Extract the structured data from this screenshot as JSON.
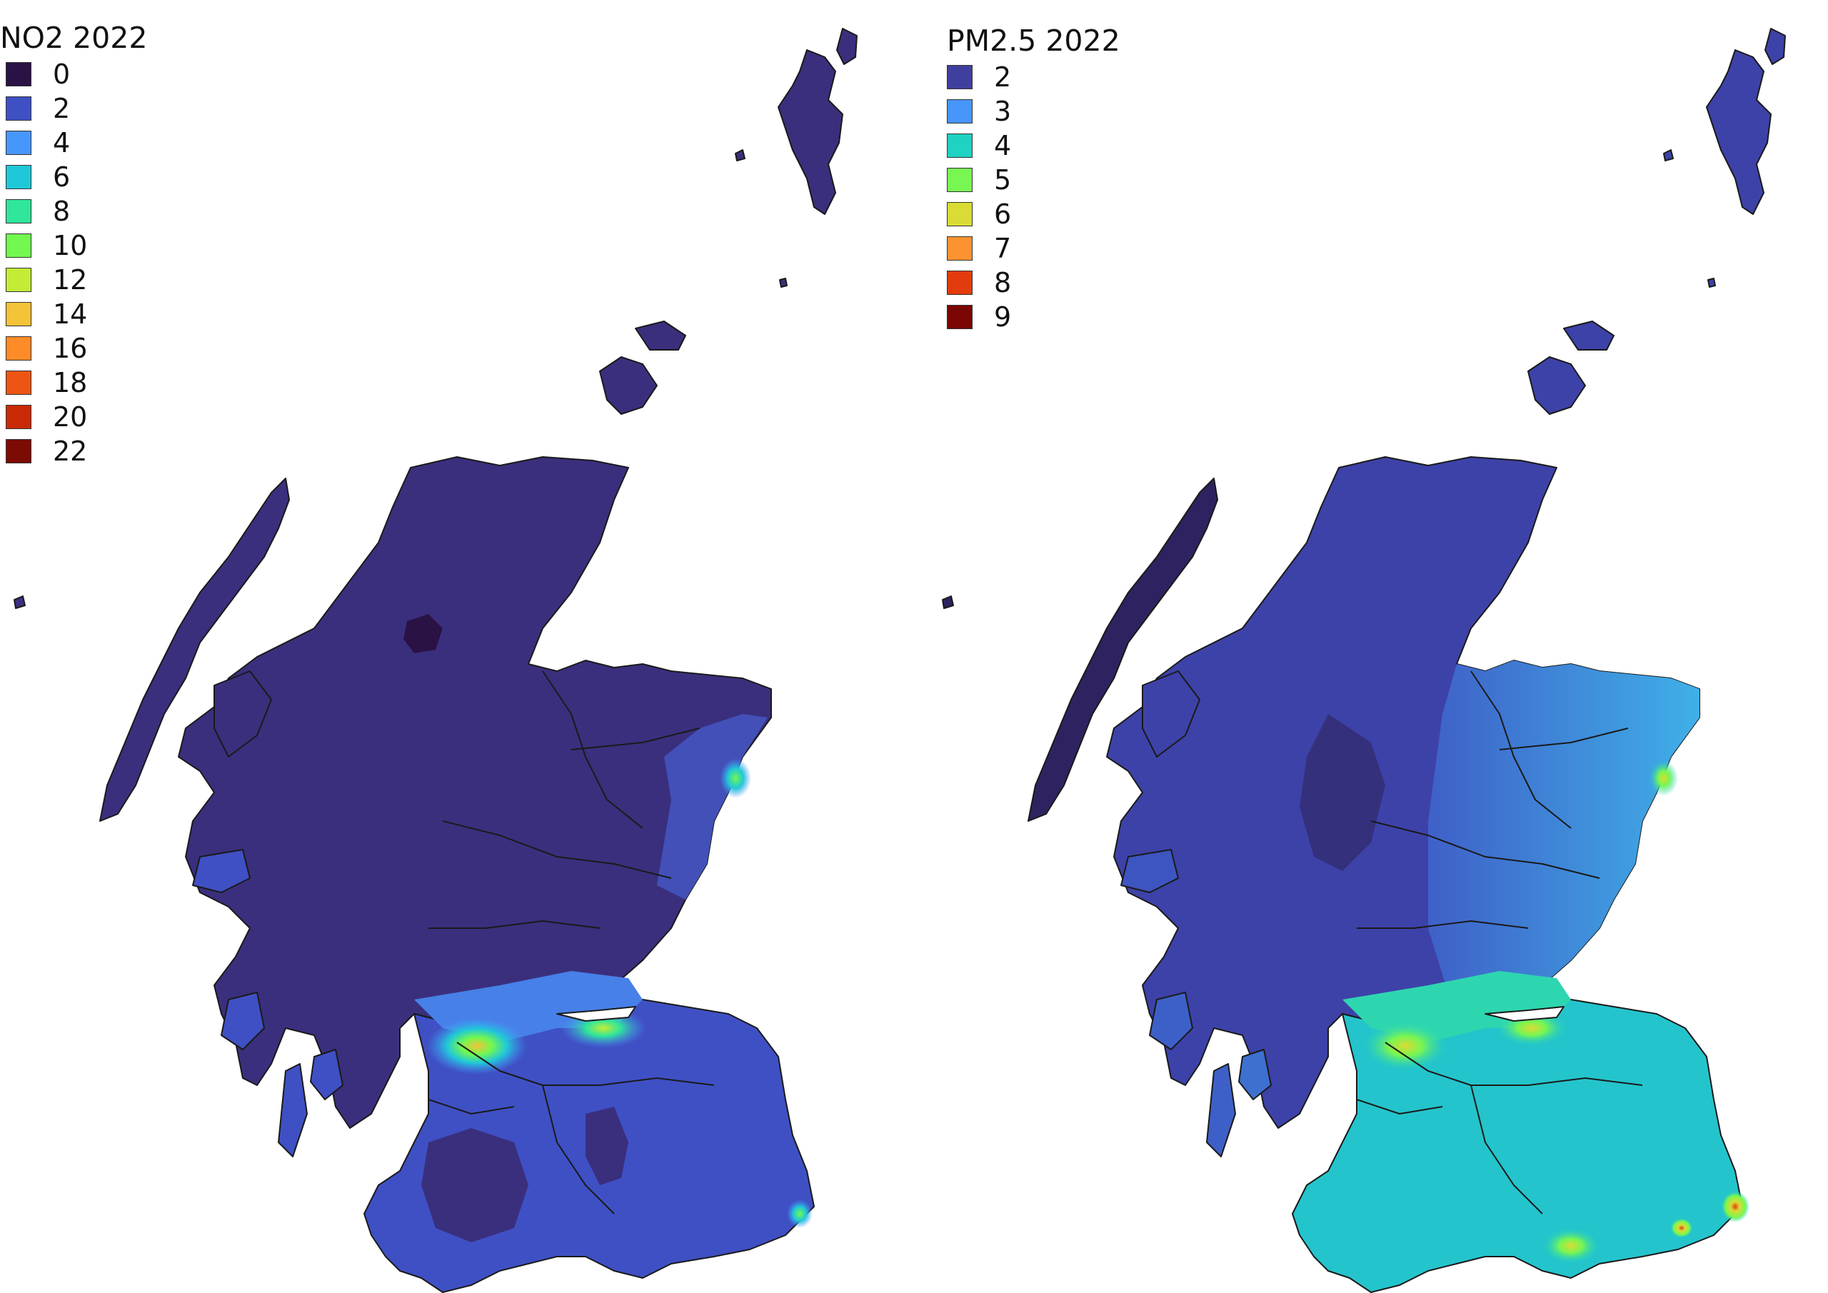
{
  "maps": [
    {
      "title": "NO2 2022",
      "legend": [
        {
          "label": "0",
          "color": "#2a1245"
        },
        {
          "label": "2",
          "color": "#3f50c4"
        },
        {
          "label": "4",
          "color": "#4796fb"
        },
        {
          "label": "6",
          "color": "#1fc8d8"
        },
        {
          "label": "8",
          "color": "#2fe69a"
        },
        {
          "label": "10",
          "color": "#73f84f"
        },
        {
          "label": "12",
          "color": "#c4ec34"
        },
        {
          "label": "14",
          "color": "#f4c338"
        },
        {
          "label": "16",
          "color": "#fc8b28"
        },
        {
          "label": "18",
          "color": "#ee5414"
        },
        {
          "label": "20",
          "color": "#c92a06"
        },
        {
          "label": "22",
          "color": "#7c0b03"
        }
      ]
    },
    {
      "title": "PM2.5 2022",
      "legend": [
        {
          "label": "2",
          "color": "#3f3f9e"
        },
        {
          "label": "3",
          "color": "#4796fb"
        },
        {
          "label": "4",
          "color": "#1fd2c1"
        },
        {
          "label": "5",
          "color": "#78f652"
        },
        {
          "label": "6",
          "color": "#d9dc34"
        },
        {
          "label": "7",
          "color": "#fd9330"
        },
        {
          "label": "8",
          "color": "#e23c0c"
        },
        {
          "label": "9",
          "color": "#7a0706"
        }
      ]
    }
  ],
  "palette": {
    "base_dark": "#3a2f7d",
    "base_darker": "#2b1f5e",
    "mid_blue": "#4a5cc4",
    "light_blue": "#4a8ef0",
    "cyan": "#2bc4d4",
    "green": "#6ef46a",
    "yellow": "#e6d830",
    "outline": "#1a1a1a"
  }
}
